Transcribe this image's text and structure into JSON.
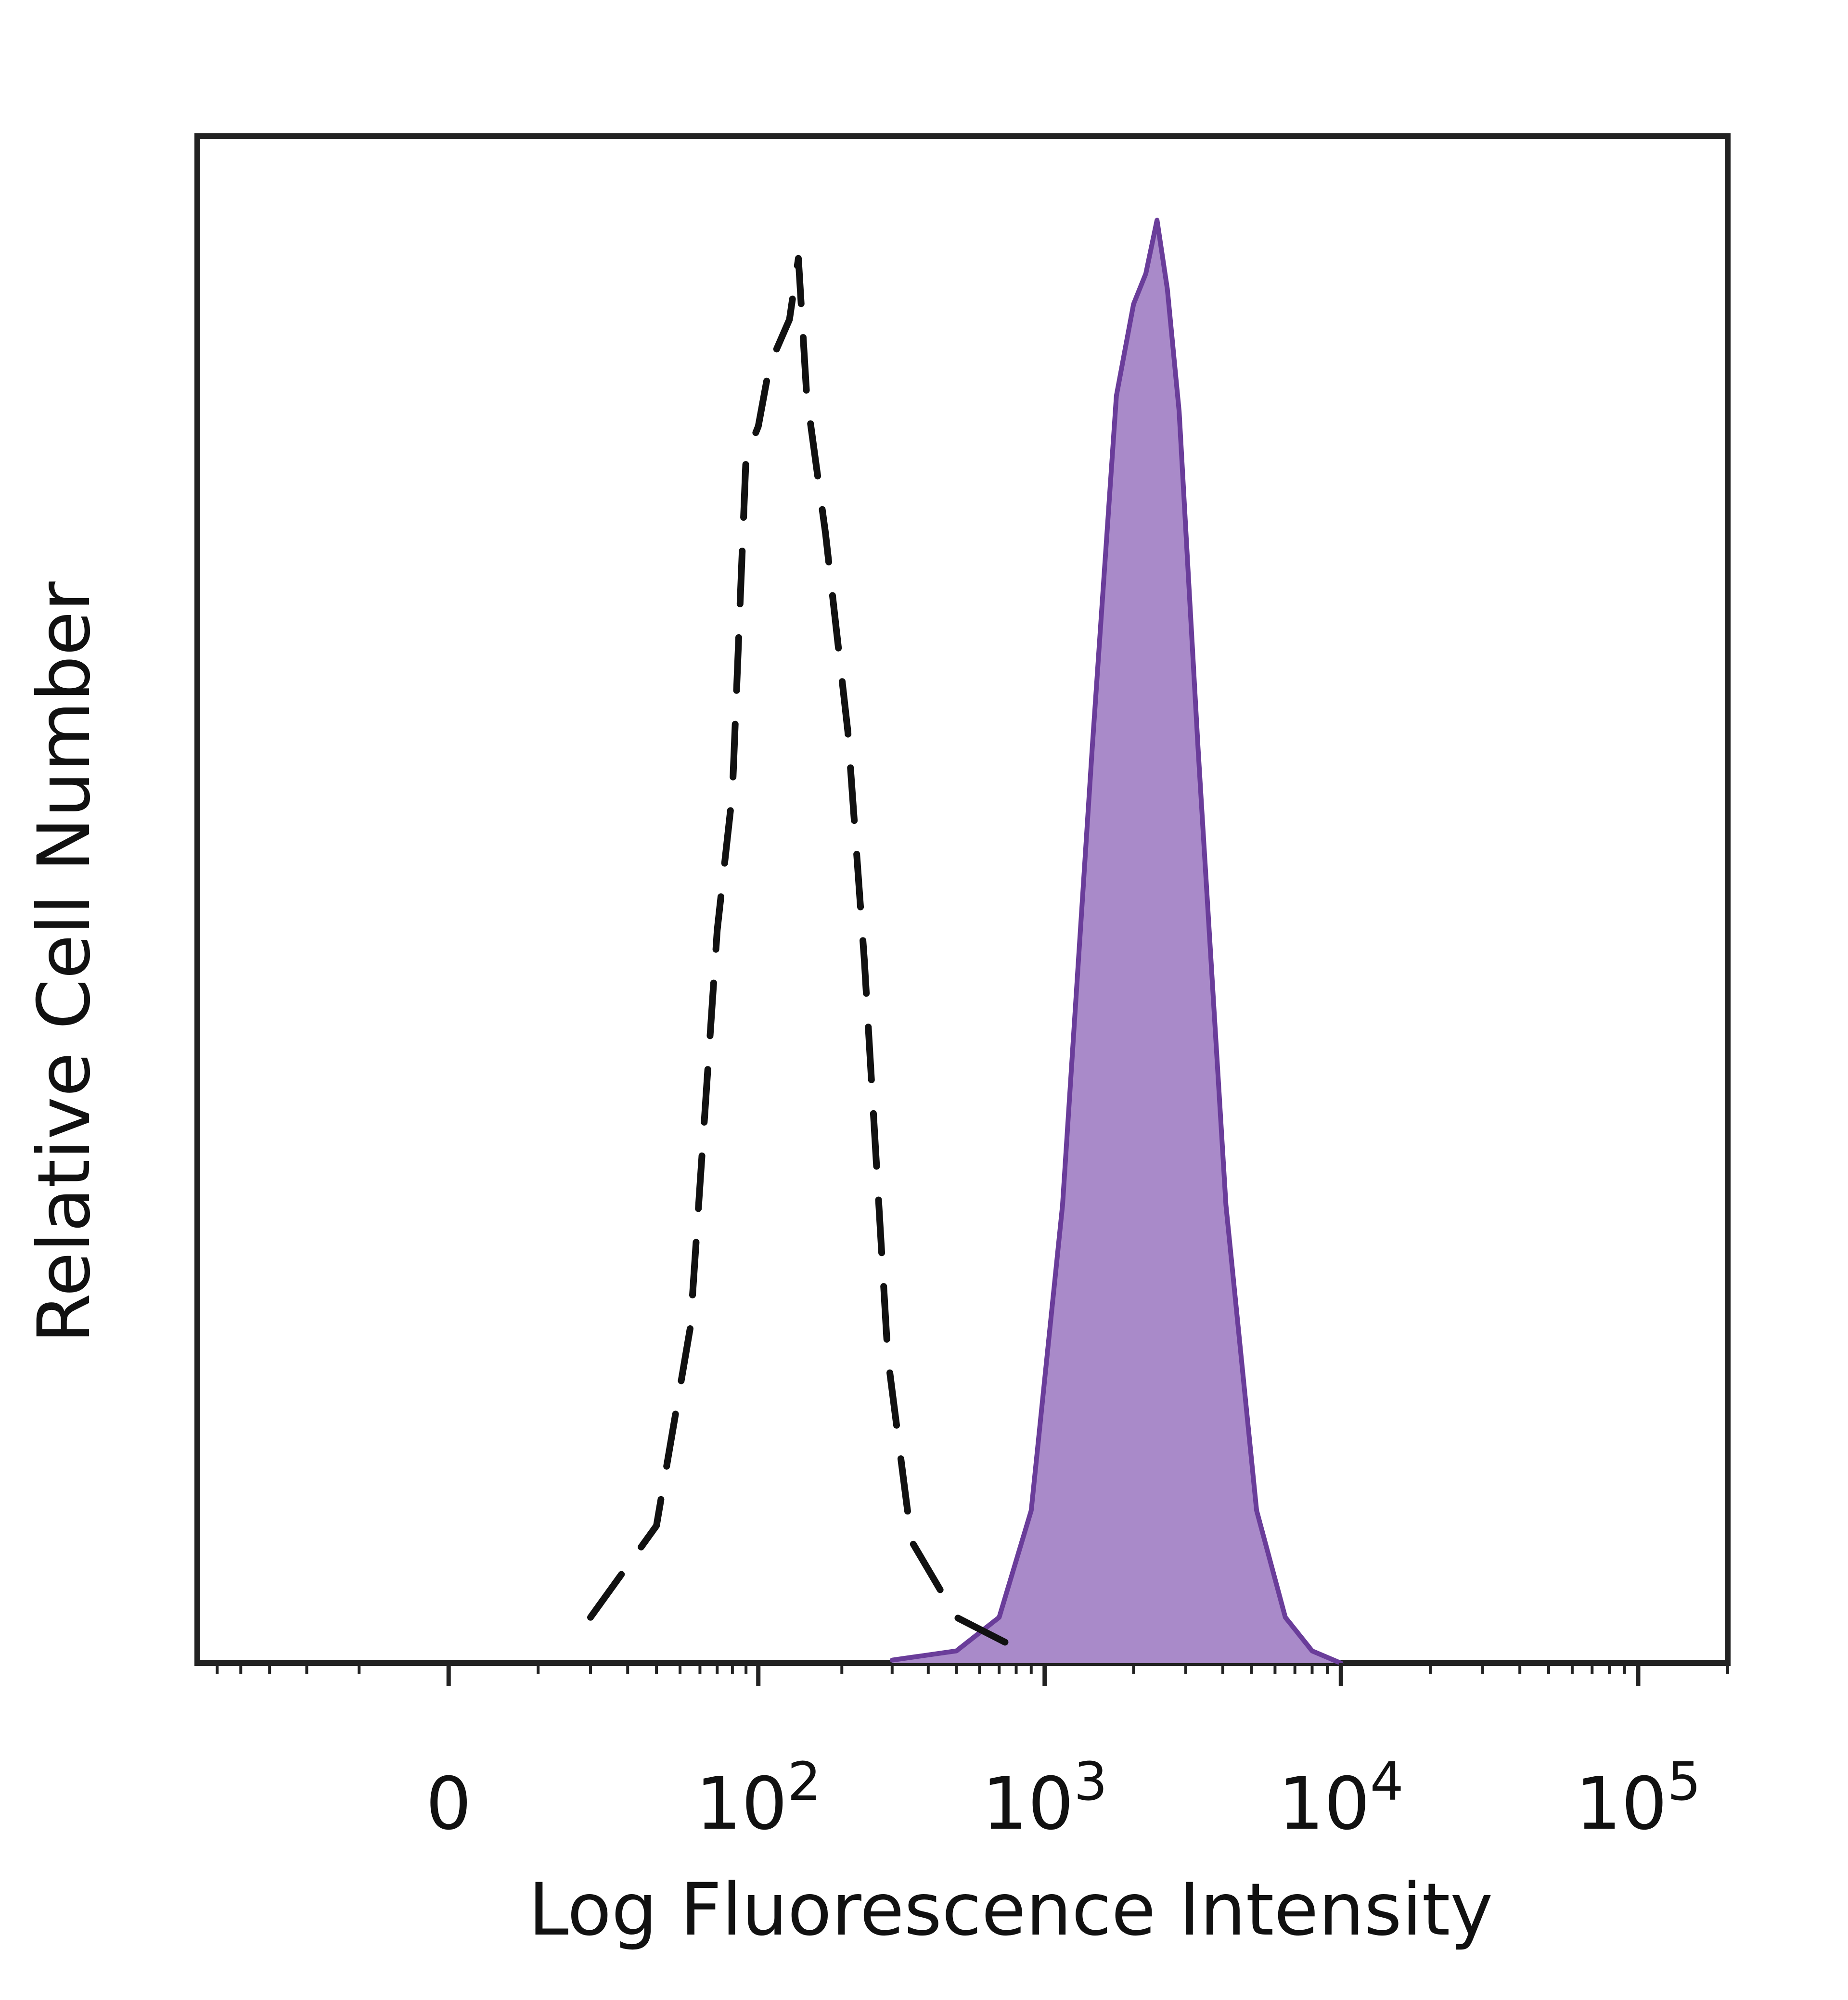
{
  "chart_data": {
    "type": "histogram",
    "xlabel": "Log Fluorescence Intensity",
    "ylabel": "Relative Cell Number",
    "x_scale": "biexponential",
    "xlim": [
      -60,
      200000
    ],
    "ylim": [
      0,
      1
    ],
    "grid": false,
    "tick_labels": [
      {
        "value": 0,
        "base": "0",
        "exp": ""
      },
      {
        "value": 100,
        "base": "10",
        "exp": "2"
      },
      {
        "value": 1000,
        "base": "10",
        "exp": "3"
      },
      {
        "value": 10000,
        "base": "10",
        "exp": "4"
      },
      {
        "value": 100000,
        "base": "10",
        "exp": "5"
      }
    ],
    "series": [
      {
        "style": "dashed",
        "color": "#111111",
        "fill": "none",
        "points": [
          [
            20,
            0.03
          ],
          [
            40,
            0.09
          ],
          [
            55,
            0.22
          ],
          [
            70,
            0.48
          ],
          [
            80,
            0.57
          ],
          [
            90,
            0.79
          ],
          [
            100,
            0.81
          ],
          [
            110,
            0.85
          ],
          [
            130,
            0.88
          ],
          [
            140,
            0.92
          ],
          [
            150,
            0.83
          ],
          [
            175,
            0.74
          ],
          [
            210,
            0.61
          ],
          [
            240,
            0.46
          ],
          [
            290,
            0.2
          ],
          [
            350,
            0.08
          ],
          [
            500,
            0.03
          ],
          [
            800,
            0.01
          ]
        ]
      },
      {
        "style": "solid",
        "color": "#6a3d9a",
        "fill": "#a98ac9",
        "points": [
          [
            300,
            0.002
          ],
          [
            500,
            0.008
          ],
          [
            700,
            0.03
          ],
          [
            900,
            0.1
          ],
          [
            1150,
            0.3
          ],
          [
            1450,
            0.6
          ],
          [
            1750,
            0.83
          ],
          [
            2000,
            0.89
          ],
          [
            2200,
            0.91
          ],
          [
            2400,
            0.945
          ],
          [
            2600,
            0.9
          ],
          [
            2850,
            0.82
          ],
          [
            3300,
            0.6
          ],
          [
            4100,
            0.3
          ],
          [
            5200,
            0.1
          ],
          [
            6500,
            0.03
          ],
          [
            8000,
            0.008
          ],
          [
            10000,
            0.0
          ]
        ]
      }
    ]
  }
}
